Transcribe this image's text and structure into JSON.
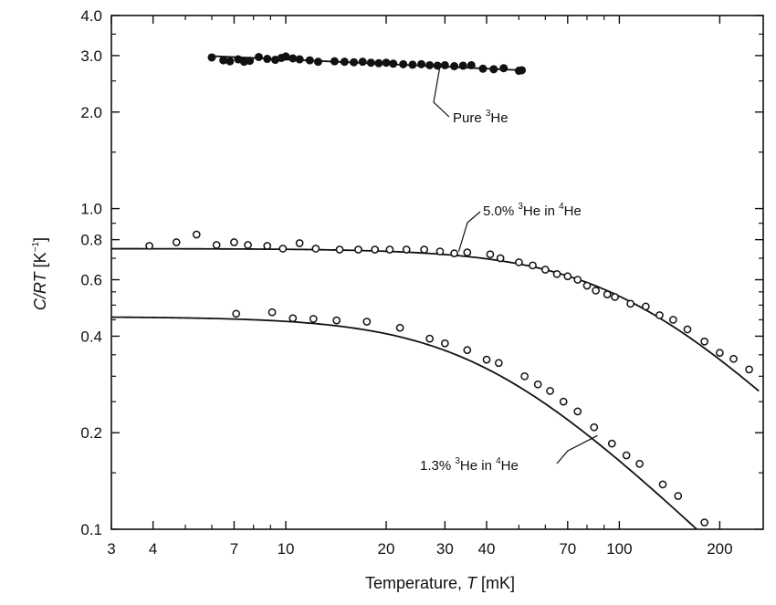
{
  "chart_data": {
    "type": "scatter",
    "title": "",
    "xlabel_prefix": "Temperature, ",
    "xlabel_var": "T",
    "xlabel_unit": " [mK]",
    "ylabel_var": "C/RT",
    "ylabel_unit_base": "[K",
    "ylabel_unit_exp": "−1",
    "ylabel_unit_close": "]",
    "x_scale": "log",
    "y_scale": "log",
    "xlim": [
      3,
      270
    ],
    "ylim": [
      0.1,
      4.0
    ],
    "x_ticks": [
      {
        "value": 3,
        "label": "3"
      },
      {
        "value": 4,
        "label": "4"
      },
      {
        "value": 7,
        "label": "7"
      },
      {
        "value": 10,
        "label": "10"
      },
      {
        "value": 20,
        "label": "20"
      },
      {
        "value": 30,
        "label": "30"
      },
      {
        "value": 40,
        "label": "40"
      },
      {
        "value": 70,
        "label": "70"
      },
      {
        "value": 100,
        "label": "100"
      },
      {
        "value": 200,
        "label": "200"
      }
    ],
    "x_minor_ticks": [
      5,
      6,
      8,
      9,
      50,
      60,
      80,
      90
    ],
    "y_ticks": [
      {
        "value": 0.1,
        "label": "0.1"
      },
      {
        "value": 0.2,
        "label": "0.2"
      },
      {
        "value": 0.4,
        "label": "0.4"
      },
      {
        "value": 0.6,
        "label": "0.6"
      },
      {
        "value": 0.8,
        "label": "0.8"
      },
      {
        "value": 1.0,
        "label": "1.0"
      },
      {
        "value": 2.0,
        "label": "2.0"
      },
      {
        "value": 3.0,
        "label": "3.0"
      },
      {
        "value": 4.0,
        "label": "4.0"
      }
    ],
    "y_minor_ticks": [
      0.15,
      0.25,
      0.3,
      0.35,
      0.45,
      0.5,
      0.55,
      0.7,
      0.9,
      1.5,
      2.5,
      3.5
    ],
    "grid": false,
    "series": [
      {
        "key": "pure",
        "label_pre": "Pure ",
        "label_sup": "3",
        "label_post": "He",
        "marker": "filled-circle",
        "points": [
          [
            6.0,
            2.96
          ],
          [
            6.5,
            2.9
          ],
          [
            6.8,
            2.88
          ],
          [
            7.2,
            2.92
          ],
          [
            7.5,
            2.87
          ],
          [
            7.8,
            2.89
          ],
          [
            8.3,
            2.97
          ],
          [
            8.8,
            2.93
          ],
          [
            9.3,
            2.91
          ],
          [
            9.7,
            2.95
          ],
          [
            10.0,
            2.98
          ],
          [
            10.5,
            2.94
          ],
          [
            11.0,
            2.92
          ],
          [
            11.8,
            2.9
          ],
          [
            12.5,
            2.87
          ],
          [
            14.0,
            2.88
          ],
          [
            15.0,
            2.87
          ],
          [
            16.0,
            2.86
          ],
          [
            17.0,
            2.87
          ],
          [
            18.0,
            2.85
          ],
          [
            19.0,
            2.84
          ],
          [
            20.0,
            2.85
          ],
          [
            21.0,
            2.83
          ],
          [
            22.5,
            2.82
          ],
          [
            24.0,
            2.81
          ],
          [
            25.5,
            2.82
          ],
          [
            27.0,
            2.8
          ],
          [
            28.5,
            2.79
          ],
          [
            30.0,
            2.8
          ],
          [
            32.0,
            2.78
          ],
          [
            34.0,
            2.79
          ],
          [
            36.0,
            2.8
          ],
          [
            39.0,
            2.73
          ],
          [
            42.0,
            2.72
          ],
          [
            45.0,
            2.74
          ],
          [
            50.0,
            2.69
          ],
          [
            51.0,
            2.7
          ]
        ],
        "fit": [
          [
            6.0,
            2.99
          ],
          [
            51.0,
            2.7
          ]
        ]
      },
      {
        "key": "five",
        "label_pre": "5.0% ",
        "label_sup": "3",
        "label_mid": "He in ",
        "label_sup2": "4",
        "label_post": "He",
        "marker": "open-circle",
        "points": [
          [
            3.9,
            0.765
          ],
          [
            4.7,
            0.785
          ],
          [
            5.4,
            0.83
          ],
          [
            6.2,
            0.77
          ],
          [
            7.0,
            0.785
          ],
          [
            7.7,
            0.77
          ],
          [
            8.8,
            0.765
          ],
          [
            9.8,
            0.75
          ],
          [
            11.0,
            0.78
          ],
          [
            12.3,
            0.75
          ],
          [
            14.5,
            0.745
          ],
          [
            16.5,
            0.745
          ],
          [
            18.5,
            0.745
          ],
          [
            20.5,
            0.745
          ],
          [
            23.0,
            0.745
          ],
          [
            26.0,
            0.745
          ],
          [
            29.0,
            0.735
          ],
          [
            32.0,
            0.725
          ],
          [
            35.0,
            0.73
          ],
          [
            41.0,
            0.72
          ],
          [
            44.0,
            0.7
          ],
          [
            50.0,
            0.68
          ],
          [
            55.0,
            0.665
          ],
          [
            60.0,
            0.645
          ],
          [
            65.0,
            0.625
          ],
          [
            70.0,
            0.615
          ],
          [
            75.0,
            0.6
          ],
          [
            80.0,
            0.575
          ],
          [
            85.0,
            0.555
          ],
          [
            92.0,
            0.54
          ],
          [
            97.0,
            0.53
          ],
          [
            108.0,
            0.505
          ],
          [
            120.0,
            0.495
          ],
          [
            132.0,
            0.465
          ],
          [
            145.0,
            0.45
          ],
          [
            160.0,
            0.42
          ],
          [
            180.0,
            0.385
          ],
          [
            200.0,
            0.355
          ],
          [
            220.0,
            0.34
          ],
          [
            245.0,
            0.315
          ]
        ]
      },
      {
        "key": "onethree",
        "label_pre": "1.3% ",
        "label_sup": "3",
        "label_mid": "He in ",
        "label_sup2": "4",
        "label_post": "He",
        "marker": "open-circle",
        "points": [
          [
            7.1,
            0.47
          ],
          [
            9.1,
            0.475
          ],
          [
            10.5,
            0.455
          ],
          [
            12.1,
            0.453
          ],
          [
            14.2,
            0.448
          ],
          [
            17.5,
            0.444
          ],
          [
            22.0,
            0.425
          ],
          [
            27.0,
            0.393
          ],
          [
            30.0,
            0.38
          ],
          [
            35.0,
            0.362
          ],
          [
            40.0,
            0.338
          ],
          [
            43.5,
            0.33
          ],
          [
            52.0,
            0.3
          ],
          [
            57.0,
            0.283
          ],
          [
            62.0,
            0.27
          ],
          [
            68.0,
            0.25
          ],
          [
            75.0,
            0.233
          ],
          [
            84.0,
            0.208
          ],
          [
            95.0,
            0.185
          ],
          [
            105.0,
            0.17
          ],
          [
            115.0,
            0.16
          ],
          [
            135.0,
            0.138
          ],
          [
            150.0,
            0.127
          ],
          [
            180.0,
            0.105
          ]
        ]
      }
    ]
  }
}
